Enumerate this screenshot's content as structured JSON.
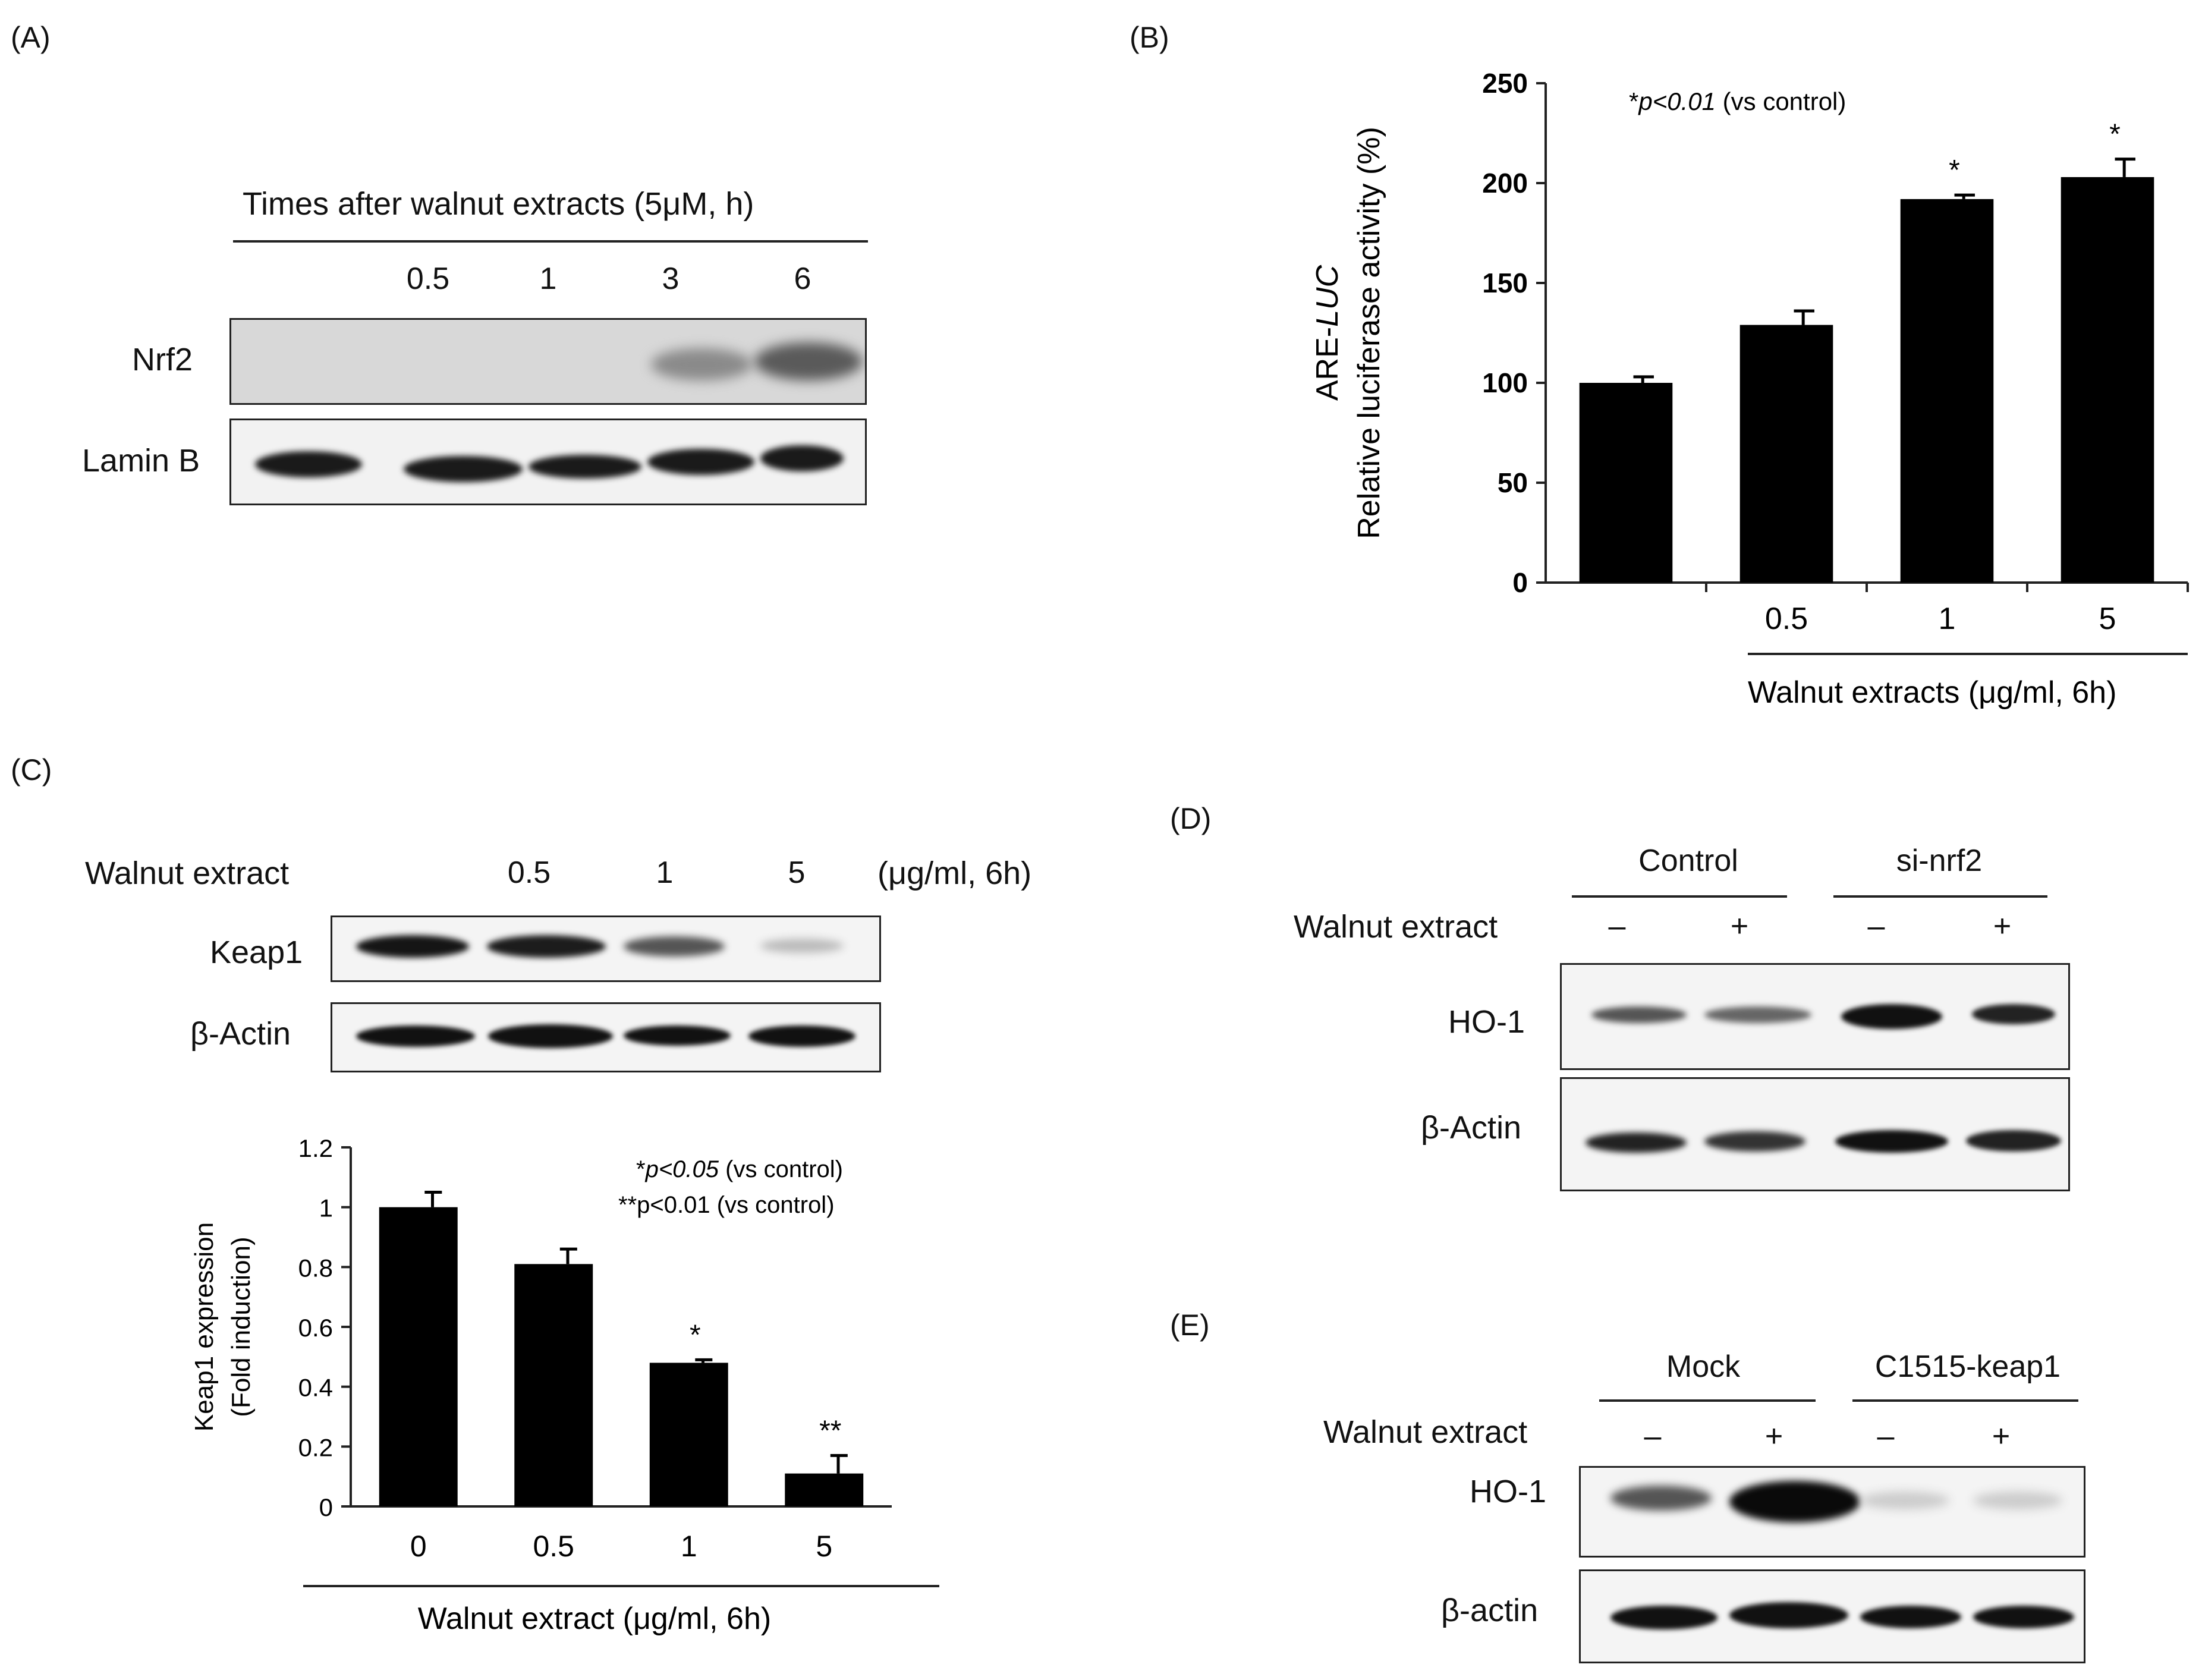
{
  "panels": {
    "a": {
      "label": "(A)",
      "header": "Times after walnut  extracts (5μM, h)",
      "lanes": [
        "",
        "0.5",
        "1",
        "3",
        "6"
      ],
      "rows": [
        "Nrf2",
        "Lamin B"
      ]
    },
    "b": {
      "label": "(B)"
    },
    "c": {
      "label": "(C)",
      "row_header": "Walnut extract",
      "lanes": [
        "",
        "0.5",
        "1",
        "5"
      ],
      "unit": "(μg/ml, 6h)",
      "rows": [
        "Keap1",
        "β-Actin"
      ]
    },
    "d": {
      "label": "(D)",
      "groups": [
        "Control",
        "si-nrf2"
      ],
      "row_header": "Walnut extract",
      "signs": [
        "–",
        "+",
        "–",
        "+"
      ],
      "rows": [
        "HO-1",
        "β-Actin"
      ]
    },
    "e": {
      "label": "(E)",
      "groups": [
        "Mock",
        "C1515-keap1"
      ],
      "row_header": "Walnut extract",
      "signs": [
        "–",
        "+",
        "–",
        "+"
      ],
      "rows": [
        "HO-1",
        "β-actin"
      ]
    }
  },
  "chart_data": [
    {
      "type": "bar",
      "panel": "B",
      "categories": [
        "",
        "0.5",
        "1",
        "5"
      ],
      "values": [
        100,
        129,
        192,
        203
      ],
      "errors": [
        3,
        7,
        2,
        9
      ],
      "significance": [
        "",
        "",
        "*",
        "*"
      ],
      "ylabel_italic_line": "ARE-LUC",
      "ylabel_prefix": "ARE-",
      "ylabel_italic": "LUC",
      "ylabel": "Relative luciferase activity (%)",
      "xlabel": "Walnut  extracts (μg/ml, 6h)",
      "yticks": [
        "0",
        "50",
        "100",
        "150",
        "200",
        "250"
      ],
      "ylim": [
        0,
        250
      ],
      "annotation_symbol": "*",
      "annotation_p": "p<0.01",
      "annotation_rest": " (vs control)",
      "bar_color": "#000000"
    },
    {
      "type": "bar",
      "panel": "C",
      "categories": [
        "0",
        "0.5",
        "1",
        "5"
      ],
      "values": [
        1.0,
        0.81,
        0.48,
        0.11
      ],
      "errors": [
        0.05,
        0.05,
        0.01,
        0.06
      ],
      "significance": [
        "",
        "",
        "*",
        "**"
      ],
      "ylabel": "Keap1 expression",
      "ylabel2": "(Fold induction)",
      "xlabel": "Walnut extract (μg/ml, 6h)",
      "yticks": [
        "0",
        "0.2",
        "0.4",
        "0.6",
        "0.8",
        "1",
        "1.2"
      ],
      "ylim": [
        0,
        1.2
      ],
      "annotation1_symbol": "*",
      "annotation1_p": "p<0.05",
      "annotation1_rest": " (vs control)",
      "annotation2": "**p<0.01 (vs control)",
      "bar_color": "#000000"
    }
  ]
}
